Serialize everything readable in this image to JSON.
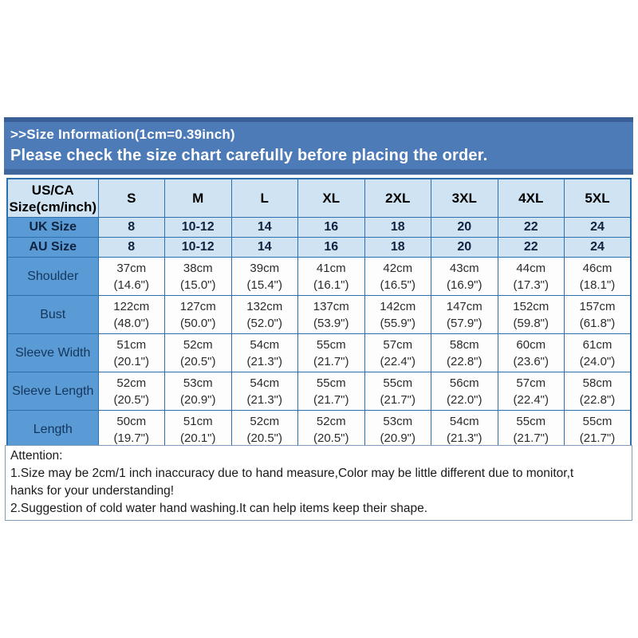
{
  "banner": {
    "line1": ">>Size Information(1cm=0.39inch)",
    "line2": "Please check the size chart carefully before placing the order."
  },
  "size_table": {
    "corner_line1": "US/CA",
    "corner_line2": "Size(cm/inch)",
    "size_columns": [
      "S",
      "M",
      "L",
      "XL",
      "2XL",
      "3XL",
      "4XL",
      "5XL"
    ],
    "size_rows": [
      {
        "label": "UK Size",
        "values": [
          "8",
          "10-12",
          "14",
          "16",
          "18",
          "20",
          "22",
          "24"
        ]
      },
      {
        "label": "AU Size",
        "values": [
          "8",
          "10-12",
          "14",
          "16",
          "18",
          "20",
          "22",
          "24"
        ]
      }
    ],
    "measurement_rows": [
      {
        "label": "Shoulder",
        "values": [
          {
            "cm": "37cm",
            "in": "(14.6\")"
          },
          {
            "cm": "38cm",
            "in": "(15.0\")"
          },
          {
            "cm": "39cm",
            "in": "(15.4\")"
          },
          {
            "cm": "41cm",
            "in": "(16.1\")"
          },
          {
            "cm": "42cm",
            "in": "(16.5\")"
          },
          {
            "cm": "43cm",
            "in": "(16.9\")"
          },
          {
            "cm": "44cm",
            "in": "(17.3\")"
          },
          {
            "cm": "46cm",
            "in": "(18.1\")"
          }
        ]
      },
      {
        "label": "Bust",
        "values": [
          {
            "cm": "122cm",
            "in": "(48.0\")"
          },
          {
            "cm": "127cm",
            "in": "(50.0\")"
          },
          {
            "cm": "132cm",
            "in": "(52.0\")"
          },
          {
            "cm": "137cm",
            "in": "(53.9\")"
          },
          {
            "cm": "142cm",
            "in": "(55.9\")"
          },
          {
            "cm": "147cm",
            "in": "(57.9\")"
          },
          {
            "cm": "152cm",
            "in": "(59.8\")"
          },
          {
            "cm": "157cm",
            "in": "(61.8\")"
          }
        ]
      },
      {
        "label": "Sleeve Width",
        "values": [
          {
            "cm": "51cm",
            "in": "(20.1\")"
          },
          {
            "cm": "52cm",
            "in": "(20.5\")"
          },
          {
            "cm": "54cm",
            "in": "(21.3\")"
          },
          {
            "cm": "55cm",
            "in": "(21.7\")"
          },
          {
            "cm": "57cm",
            "in": "(22.4\")"
          },
          {
            "cm": "58cm",
            "in": "(22.8\")"
          },
          {
            "cm": "60cm",
            "in": "(23.6\")"
          },
          {
            "cm": "61cm",
            "in": "(24.0\")"
          }
        ]
      },
      {
        "label": "Sleeve Length",
        "values": [
          {
            "cm": "52cm",
            "in": "(20.5\")"
          },
          {
            "cm": "53cm",
            "in": "(20.9\")"
          },
          {
            "cm": "54cm",
            "in": "(21.3\")"
          },
          {
            "cm": "55cm",
            "in": "(21.7\")"
          },
          {
            "cm": "55cm",
            "in": "(21.7\")"
          },
          {
            "cm": "56cm",
            "in": "(22.0\")"
          },
          {
            "cm": "57cm",
            "in": "(22.4\")"
          },
          {
            "cm": "58cm",
            "in": "(22.8\")"
          }
        ]
      },
      {
        "label": "Length",
        "values": [
          {
            "cm": "50cm",
            "in": "(19.7\")"
          },
          {
            "cm": "51cm",
            "in": "(20.1\")"
          },
          {
            "cm": "52cm",
            "in": "(20.5\")"
          },
          {
            "cm": "52cm",
            "in": "(20.5\")"
          },
          {
            "cm": "53cm",
            "in": "(20.9\")"
          },
          {
            "cm": "54cm",
            "in": "(21.3\")"
          },
          {
            "cm": "55cm",
            "in": "(21.7\")"
          },
          {
            "cm": "55cm",
            "in": "(21.7\")"
          }
        ]
      }
    ]
  },
  "attention": {
    "lines": [
      "Attention:",
      "1.Size may be 2cm/1 inch inaccuracy due to hand measure,Color may be little different due to monitor,t",
      "hanks for your understanding!",
      "2.Suggestion of cold water hand washing.It can help items keep their shape."
    ]
  },
  "colors": {
    "banner_blue": "#4c7bb7",
    "banner_edge_dark": "#3a5f97",
    "table_light_blue": "#cfe3f3",
    "row_label_blue": "#5b9bd5",
    "table_border_blue": "#2c70b0",
    "attention_border": "#7f9cba"
  }
}
